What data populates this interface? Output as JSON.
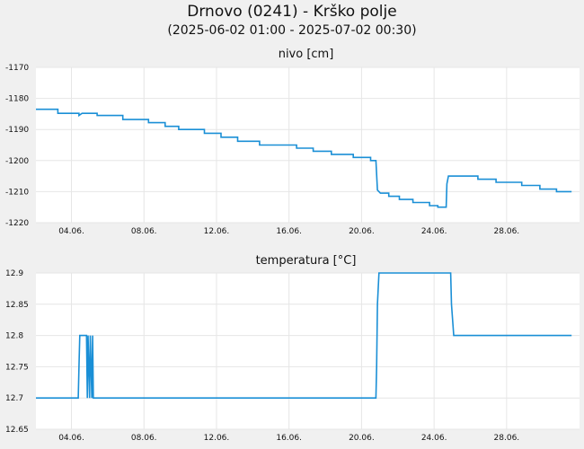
{
  "header": {
    "title": "Drnovo (0241) - Krško polje",
    "subtitle": "(2025-06-02 01:00 - 2025-07-02 00:30)"
  },
  "colors": {
    "series": "#1a8fd6",
    "grid": "#e6e6e6",
    "background": "#f0f0f0",
    "plot_background": "#ffffff"
  },
  "chart_data": [
    {
      "type": "line",
      "title": "nivo [cm]",
      "x_range": [
        "2025-06-02 01:00",
        "2025-07-02 00:30"
      ],
      "x_ticks": [
        "04.06.",
        "08.06.",
        "12.06.",
        "16.06.",
        "20.06.",
        "24.06.",
        "28.06."
      ],
      "ylim": [
        -1220,
        -1170
      ],
      "y_ticks": [
        "-1170",
        "-1180",
        "-1190",
        "-1200",
        "-1210",
        "-1220"
      ],
      "grid": true,
      "series": [
        {
          "values": [
            [
              "2025-06-02 01:00",
              -1183.5
            ],
            [
              "2025-06-03 06:00",
              -1183.5
            ],
            [
              "2025-06-03 06:00",
              -1184.8
            ],
            [
              "2025-06-04 10:00",
              -1184.8
            ],
            [
              "2025-06-04 10:00",
              -1185.5
            ],
            [
              "2025-06-04 14:00",
              -1184.8
            ],
            [
              "2025-06-05 10:00",
              -1184.8
            ],
            [
              "2025-06-05 10:00",
              -1185.5
            ],
            [
              "2025-06-06 20:00",
              -1185.5
            ],
            [
              "2025-06-06 20:00",
              -1186.8
            ],
            [
              "2025-06-08 06:00",
              -1186.8
            ],
            [
              "2025-06-08 06:00",
              -1187.8
            ],
            [
              "2025-06-09 04:00",
              -1187.8
            ],
            [
              "2025-06-09 04:00",
              -1189.0
            ],
            [
              "2025-06-09 22:00",
              -1189.0
            ],
            [
              "2025-06-09 22:00",
              -1190.0
            ],
            [
              "2025-06-11 08:00",
              -1190.0
            ],
            [
              "2025-06-11 08:00",
              -1191.2
            ],
            [
              "2025-06-12 06:00",
              -1191.2
            ],
            [
              "2025-06-12 06:00",
              -1192.5
            ],
            [
              "2025-06-13 04:00",
              -1192.5
            ],
            [
              "2025-06-13 04:00",
              -1193.8
            ],
            [
              "2025-06-14 09:00",
              -1193.8
            ],
            [
              "2025-06-14 09:00",
              -1195.0
            ],
            [
              "2025-06-16 10:00",
              -1195.0
            ],
            [
              "2025-06-16 10:00",
              -1196.0
            ],
            [
              "2025-06-17 08:00",
              -1196.0
            ],
            [
              "2025-06-17 08:00",
              -1197.0
            ],
            [
              "2025-06-18 08:00",
              -1197.0
            ],
            [
              "2025-06-18 08:00",
              -1198.0
            ],
            [
              "2025-06-19 13:00",
              -1198.0
            ],
            [
              "2025-06-19 13:00",
              -1199.0
            ],
            [
              "2025-06-20 12:00",
              -1199.0
            ],
            [
              "2025-06-20 12:00",
              -1200.0
            ],
            [
              "2025-06-20 19:00",
              -1200.0
            ],
            [
              "2025-06-20 21:00",
              -1209.5
            ],
            [
              "2025-06-21 01:00",
              -1210.5
            ],
            [
              "2025-06-21 12:00",
              -1210.5
            ],
            [
              "2025-06-21 12:00",
              -1211.5
            ],
            [
              "2025-06-22 02:00",
              -1211.5
            ],
            [
              "2025-06-22 02:00",
              -1212.5
            ],
            [
              "2025-06-22 20:00",
              -1212.5
            ],
            [
              "2025-06-22 20:00",
              -1213.5
            ],
            [
              "2025-06-23 18:00",
              -1213.5
            ],
            [
              "2025-06-23 18:00",
              -1214.5
            ],
            [
              "2025-06-24 05:00",
              -1214.5
            ],
            [
              "2025-06-24 05:00",
              -1215.0
            ],
            [
              "2025-06-24 16:00",
              -1215.0
            ],
            [
              "2025-06-24 17:00",
              -1207.5
            ],
            [
              "2025-06-24 19:00",
              -1205.0
            ],
            [
              "2025-06-26 10:00",
              -1205.0
            ],
            [
              "2025-06-26 10:00",
              -1206.0
            ],
            [
              "2025-06-27 10:00",
              -1206.0
            ],
            [
              "2025-06-27 10:00",
              -1207.0
            ],
            [
              "2025-06-28 20:00",
              -1207.0
            ],
            [
              "2025-06-28 20:00",
              -1208.0
            ],
            [
              "2025-06-29 20:00",
              -1208.0
            ],
            [
              "2025-06-29 20:00",
              -1209.2
            ],
            [
              "2025-06-30 18:00",
              -1209.2
            ],
            [
              "2025-06-30 18:00",
              -1210.0
            ],
            [
              "2025-07-01 14:00",
              -1210.0
            ]
          ]
        }
      ]
    },
    {
      "type": "line",
      "title": "temperatura [°C]",
      "x_range": [
        "2025-06-02 01:00",
        "2025-07-02 00:30"
      ],
      "x_ticks": [
        "04.06.",
        "08.06.",
        "12.06.",
        "16.06.",
        "20.06.",
        "24.06.",
        "28.06."
      ],
      "ylim": [
        12.65,
        12.9
      ],
      "y_ticks": [
        "12.9",
        "12.85",
        "12.8",
        "12.75",
        "12.7",
        "12.65"
      ],
      "grid": true,
      "series": [
        {
          "values": [
            [
              "2025-06-02 01:00",
              12.7
            ],
            [
              "2025-06-04 09:00",
              12.7
            ],
            [
              "2025-06-04 10:00",
              12.75
            ],
            [
              "2025-06-04 11:00",
              12.8
            ],
            [
              "2025-06-04 20:00",
              12.8
            ],
            [
              "2025-06-04 21:00",
              12.7
            ],
            [
              "2025-06-04 22:00",
              12.8
            ],
            [
              "2025-06-05 00:00",
              12.7
            ],
            [
              "2025-06-05 01:00",
              12.8
            ],
            [
              "2025-06-05 03:00",
              12.7
            ],
            [
              "2025-06-05 04:00",
              12.8
            ],
            [
              "2025-06-05 05:00",
              12.7
            ],
            [
              "2025-06-20 19:00",
              12.7
            ],
            [
              "2025-06-20 20:00",
              12.75
            ],
            [
              "2025-06-20 21:00",
              12.85
            ],
            [
              "2025-06-20 23:00",
              12.9
            ],
            [
              "2025-06-24 22:00",
              12.9
            ],
            [
              "2025-06-24 23:00",
              12.85
            ],
            [
              "2025-06-25 02:00",
              12.8
            ],
            [
              "2025-07-01 14:00",
              12.8
            ]
          ]
        }
      ]
    }
  ]
}
